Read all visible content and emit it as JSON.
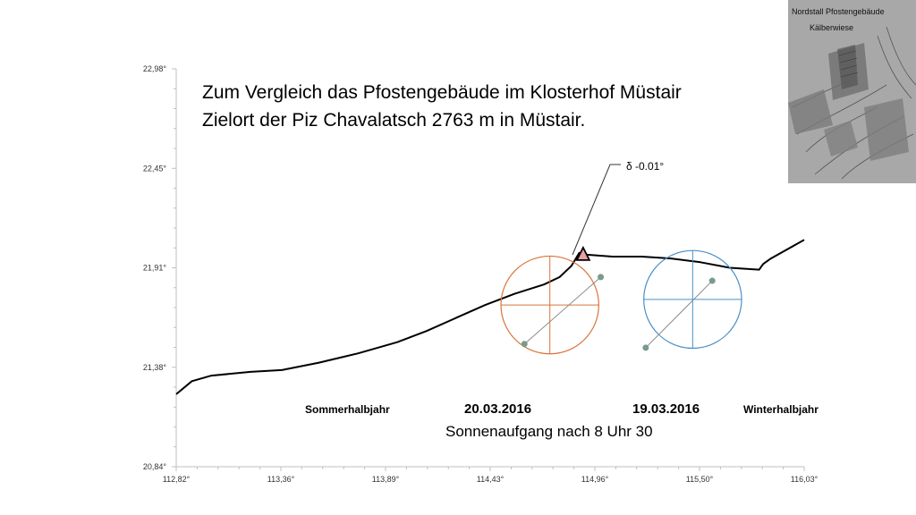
{
  "title_lines": [
    "Zum Vergleich das Pfostengebäude im Klosterhof Müstair",
    "Zielort der Piz Chavalatsch 2763 m in Müstair."
  ],
  "labels": {
    "left": "Sommerhalbjahr",
    "right": "Winterhalbjahr",
    "date1": "20.03.2016",
    "date2": "19.03.2016",
    "subtitle": "Sonnenaufgang nach 8 Uhr 30",
    "delta": "δ -0.01°"
  },
  "map_inset": {
    "line1": "Nordstall  Pfostengebäude",
    "line2": "Kälberwiese"
  },
  "colors": {
    "orange_circle": "#d9733a",
    "blue_circle": "#4a90c8",
    "marker_fill": "#e8a0a0",
    "dot": "#7a9a8a"
  },
  "chart_data": {
    "type": "line",
    "xlim": [
      112.82,
      116.03
    ],
    "ylim": [
      20.84,
      22.98
    ],
    "x_ticks": [
      "112,82°",
      "113,36°",
      "113,89°",
      "114,43°",
      "114,96°",
      "115,50°",
      "116,03°"
    ],
    "y_ticks": [
      "22,98°",
      "22,45°",
      "21,91°",
      "21,38°",
      "20,84°"
    ],
    "series": [
      {
        "x": [
          112.82,
          112.9,
          113.0,
          113.2,
          113.36,
          113.55,
          113.75,
          113.95,
          114.1,
          114.25,
          114.4,
          114.55,
          114.7,
          114.78,
          114.84,
          114.88,
          114.92,
          115.05,
          115.2,
          115.35,
          115.5,
          115.65,
          115.8,
          115.82,
          115.86,
          116.03
        ],
        "y": [
          21.23,
          21.3,
          21.33,
          21.35,
          21.36,
          21.4,
          21.45,
          21.51,
          21.57,
          21.64,
          21.71,
          21.77,
          21.82,
          21.86,
          21.92,
          21.99,
          21.98,
          21.97,
          21.97,
          21.96,
          21.94,
          21.91,
          21.9,
          21.93,
          21.96,
          22.06
        ]
      }
    ],
    "marker": {
      "x": 114.9,
      "y": 21.985,
      "shape": "triangle"
    },
    "sun_circles": [
      {
        "center": [
          114.73,
          21.71
        ],
        "radius_x": 0.25,
        "line_from": [
          114.6,
          21.5
        ],
        "line_to": [
          114.99,
          21.86
        ]
      },
      {
        "center": [
          115.46,
          21.74
        ],
        "radius_x": 0.25,
        "line_from": [
          115.22,
          21.48
        ],
        "line_to": [
          115.56,
          21.84
        ]
      }
    ]
  }
}
